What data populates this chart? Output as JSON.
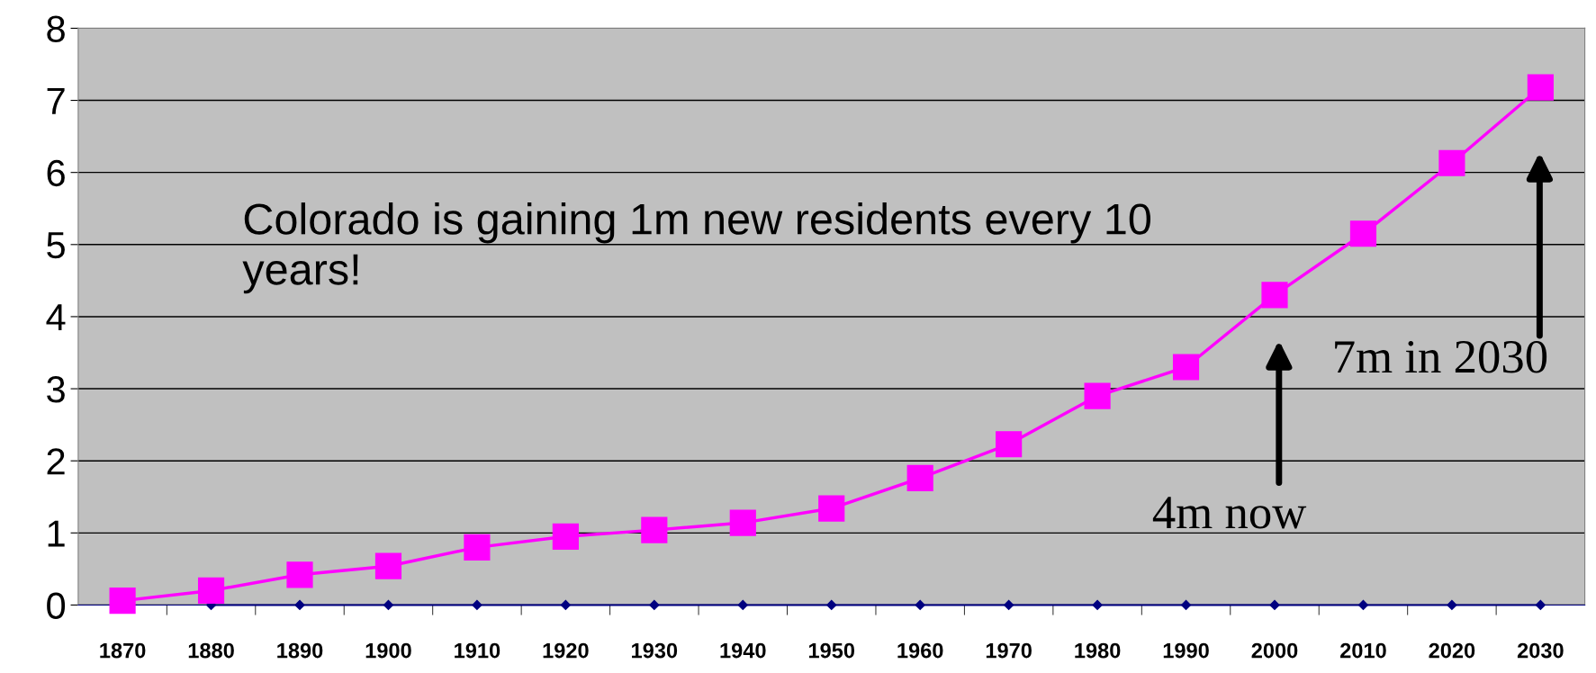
{
  "chart_data": {
    "type": "line",
    "categories": [
      "1870",
      "1880",
      "1890",
      "1900",
      "1910",
      "1920",
      "1930",
      "1940",
      "1950",
      "1960",
      "1970",
      "1980",
      "1990",
      "2000",
      "2010",
      "2020",
      "2030"
    ],
    "series": [
      {
        "color": "#ff00ff",
        "marker": "square",
        "values": [
          0.06,
          0.2,
          0.42,
          0.54,
          0.8,
          0.95,
          1.04,
          1.14,
          1.34,
          1.76,
          2.23,
          2.9,
          3.3,
          4.3,
          5.15,
          6.13,
          7.18
        ]
      },
      {
        "color": "#000080",
        "marker": "diamond",
        "values": [
          null,
          0,
          0,
          0,
          0,
          0,
          0,
          0,
          0,
          0,
          0,
          0,
          0,
          0,
          0,
          0,
          0
        ]
      }
    ],
    "ylim": [
      0,
      8
    ],
    "yticks": [
      0,
      1,
      2,
      3,
      4,
      5,
      6,
      7,
      8
    ],
    "grid": "y",
    "legend": false,
    "annotations": [
      "Colorado is gaining 1m new residents every 10 years!",
      "4m now",
      "7m in 2030"
    ]
  }
}
